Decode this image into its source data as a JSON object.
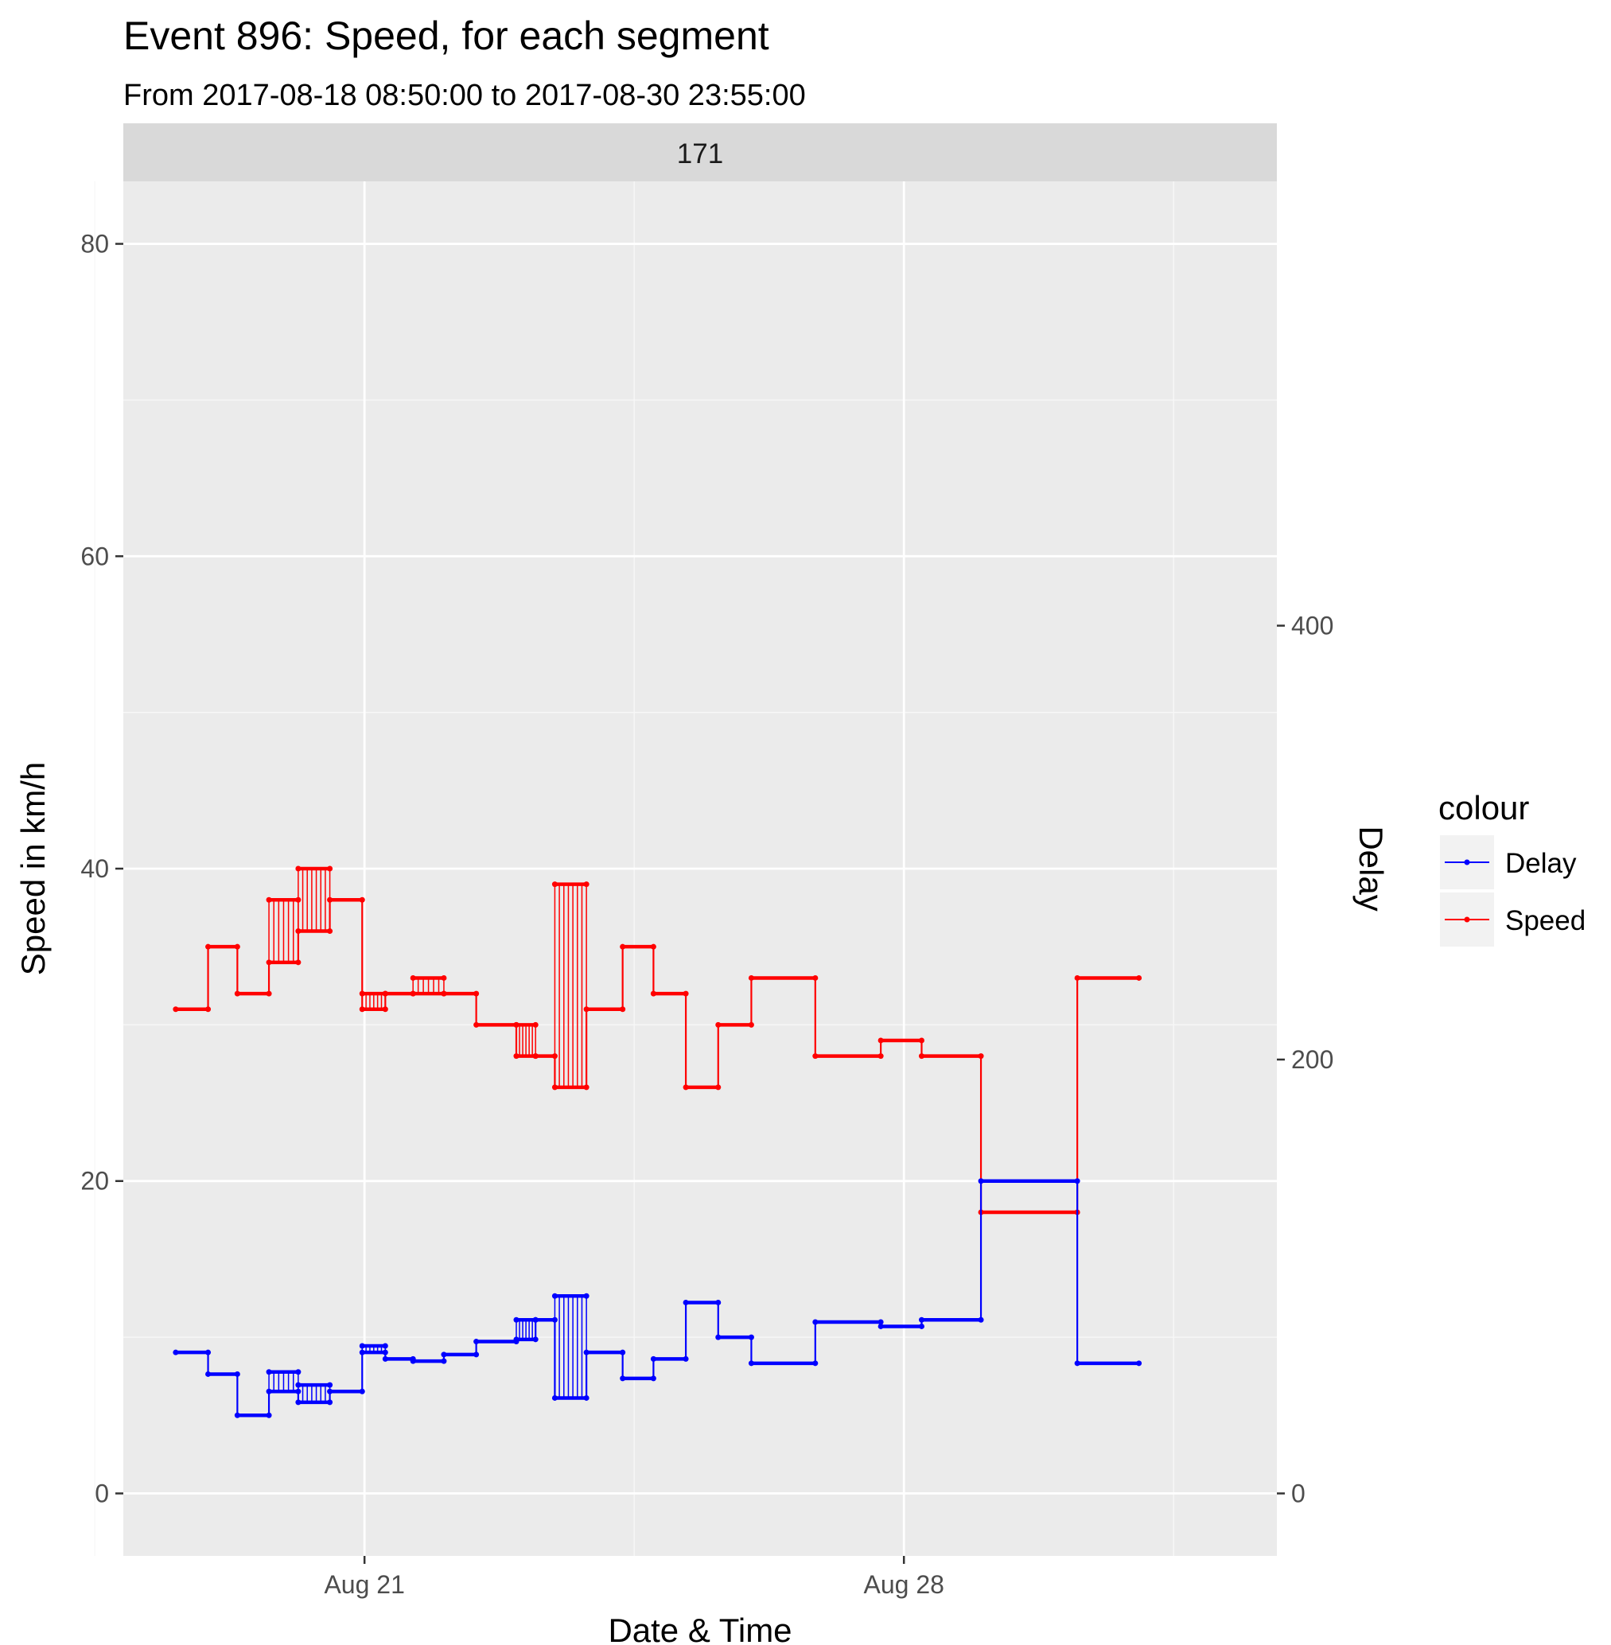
{
  "chart_data": {
    "type": "line",
    "title": "Event 896: Speed, for each segment",
    "subtitle": "From 2017-08-18 08:50:00 to 2017-08-30 23:55:00",
    "facet_label": "171",
    "xlabel": "Date & Time",
    "ylabel": "Speed in km/h",
    "y2label": "Delay",
    "x_unit": "days since 2017-08-18 00:00",
    "xlim": [
      -0.13,
      14.84
    ],
    "ylim": [
      -4,
      84
    ],
    "y2lim": [
      -28.8,
      604.8
    ],
    "x_ticks": [
      {
        "value": 3,
        "label": "Aug 21"
      },
      {
        "value": 10,
        "label": "Aug 28"
      }
    ],
    "y_ticks": [
      0,
      20,
      40,
      60,
      80
    ],
    "y2_ticks": [
      0,
      200,
      400
    ],
    "legend": {
      "title": "colour",
      "entries": [
        "Delay",
        "Speed"
      ],
      "placement": "right"
    },
    "colors": {
      "Speed": "#ff0000",
      "Delay": "#0000ff"
    },
    "series": [
      {
        "name": "Speed",
        "axis": "left",
        "steps": [
          {
            "x0": 0.55,
            "x1": 0.97,
            "y": 31
          },
          {
            "x0": 0.97,
            "x1": 1.35,
            "y": 35
          },
          {
            "x0": 1.35,
            "x1": 1.76,
            "y": 32
          },
          {
            "x0": 1.76,
            "x1": 2.14,
            "y": 34,
            "alt": 38
          },
          {
            "x0": 2.14,
            "x1": 2.55,
            "y": 36,
            "alt": 40
          },
          {
            "x0": 2.55,
            "x1": 2.97,
            "y": 38
          },
          {
            "x0": 2.97,
            "x1": 3.27,
            "y": 31,
            "alt": 32
          },
          {
            "x0": 3.27,
            "x1": 3.63,
            "y": 32
          },
          {
            "x0": 3.63,
            "x1": 4.03,
            "y": 32,
            "alt": 33
          },
          {
            "x0": 4.03,
            "x1": 4.45,
            "y": 32
          },
          {
            "x0": 4.45,
            "x1": 4.97,
            "y": 30
          },
          {
            "x0": 4.97,
            "x1": 5.22,
            "y": 28,
            "alt": 30
          },
          {
            "x0": 5.22,
            "x1": 5.47,
            "y": 28
          },
          {
            "x0": 5.47,
            "x1": 5.88,
            "y": 26,
            "alt": 39
          },
          {
            "x0": 5.88,
            "x1": 6.35,
            "y": 31
          },
          {
            "x0": 6.35,
            "x1": 6.75,
            "y": 35
          },
          {
            "x0": 6.75,
            "x1": 7.17,
            "y": 32
          },
          {
            "x0": 7.17,
            "x1": 7.59,
            "y": 26
          },
          {
            "x0": 7.59,
            "x1": 8.02,
            "y": 30
          },
          {
            "x0": 8.02,
            "x1": 8.85,
            "y": 33
          },
          {
            "x0": 8.85,
            "x1": 9.7,
            "y": 28
          },
          {
            "x0": 9.7,
            "x1": 10.23,
            "y": 29
          },
          {
            "x0": 10.23,
            "x1": 11.0,
            "y": 28
          },
          {
            "x0": 11.0,
            "x1": 12.25,
            "y": 18
          },
          {
            "x0": 12.25,
            "x1": 13.05,
            "y": 33
          }
        ]
      },
      {
        "name": "Delay",
        "axis": "right",
        "steps": [
          {
            "x0": 0.55,
            "x1": 0.97,
            "y": 65
          },
          {
            "x0": 0.97,
            "x1": 1.35,
            "y": 55
          },
          {
            "x0": 1.35,
            "x1": 1.76,
            "y": 36
          },
          {
            "x0": 1.76,
            "x1": 2.14,
            "y": 47,
            "alt": 56
          },
          {
            "x0": 2.14,
            "x1": 2.55,
            "y": 42,
            "alt": 50
          },
          {
            "x0": 2.55,
            "x1": 2.97,
            "y": 47
          },
          {
            "x0": 2.97,
            "x1": 3.27,
            "y": 65,
            "alt": 68
          },
          {
            "x0": 3.27,
            "x1": 3.63,
            "y": 62
          },
          {
            "x0": 3.63,
            "x1": 4.03,
            "y": 61
          },
          {
            "x0": 4.03,
            "x1": 4.45,
            "y": 64
          },
          {
            "x0": 4.45,
            "x1": 4.97,
            "y": 70
          },
          {
            "x0": 4.97,
            "x1": 5.22,
            "y": 71,
            "alt": 80
          },
          {
            "x0": 5.22,
            "x1": 5.47,
            "y": 80
          },
          {
            "x0": 5.47,
            "x1": 5.88,
            "y": 44,
            "alt": 91
          },
          {
            "x0": 5.88,
            "x1": 6.35,
            "y": 65
          },
          {
            "x0": 6.35,
            "x1": 6.75,
            "y": 53
          },
          {
            "x0": 6.75,
            "x1": 7.17,
            "y": 62
          },
          {
            "x0": 7.17,
            "x1": 7.59,
            "y": 88
          },
          {
            "x0": 7.59,
            "x1": 8.02,
            "y": 72
          },
          {
            "x0": 8.02,
            "x1": 8.85,
            "y": 60
          },
          {
            "x0": 8.85,
            "x1": 9.7,
            "y": 79
          },
          {
            "x0": 9.7,
            "x1": 10.23,
            "y": 77
          },
          {
            "x0": 10.23,
            "x1": 11.0,
            "y": 80
          },
          {
            "x0": 11.0,
            "x1": 12.25,
            "y": 144
          },
          {
            "x0": 12.25,
            "x1": 13.05,
            "y": 60
          }
        ]
      }
    ]
  }
}
